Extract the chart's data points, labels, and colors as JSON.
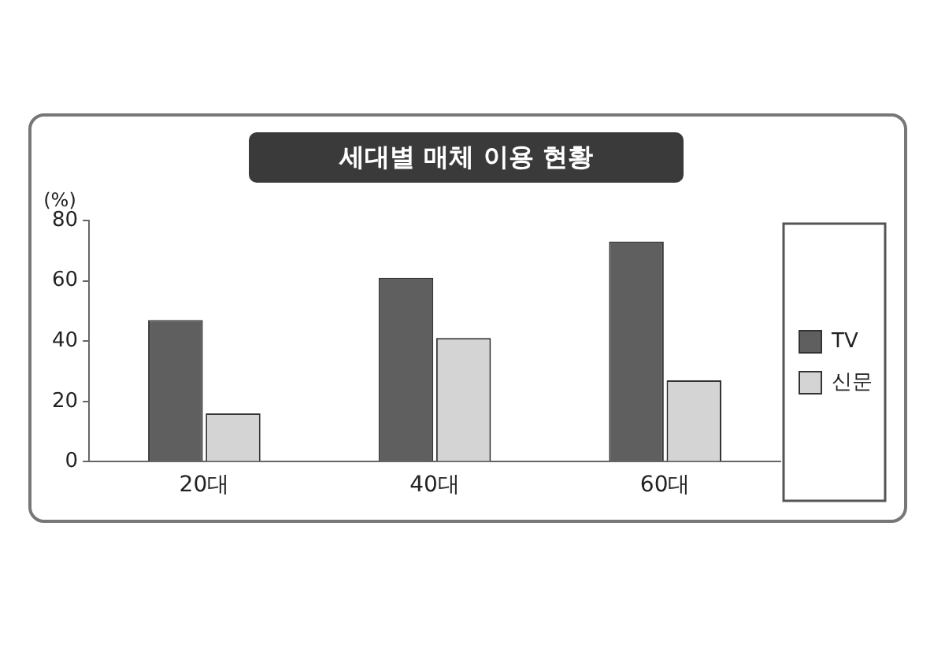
{
  "chart_data": {
    "type": "bar",
    "title": "세대별 매체 이용 현황",
    "ylabel": "(%)",
    "categories": [
      "20대",
      "40대",
      "60대"
    ],
    "series": [
      {
        "name": "TV",
        "color": "#5f5f5f",
        "values": [
          47,
          61,
          73
        ]
      },
      {
        "name": "신문",
        "color": "#d4d4d4",
        "values": [
          16,
          41,
          27
        ]
      }
    ],
    "ylim": [
      0,
      80
    ],
    "yticks": [
      0,
      20,
      40,
      60,
      80
    ],
    "grid": false,
    "legend": "right"
  }
}
